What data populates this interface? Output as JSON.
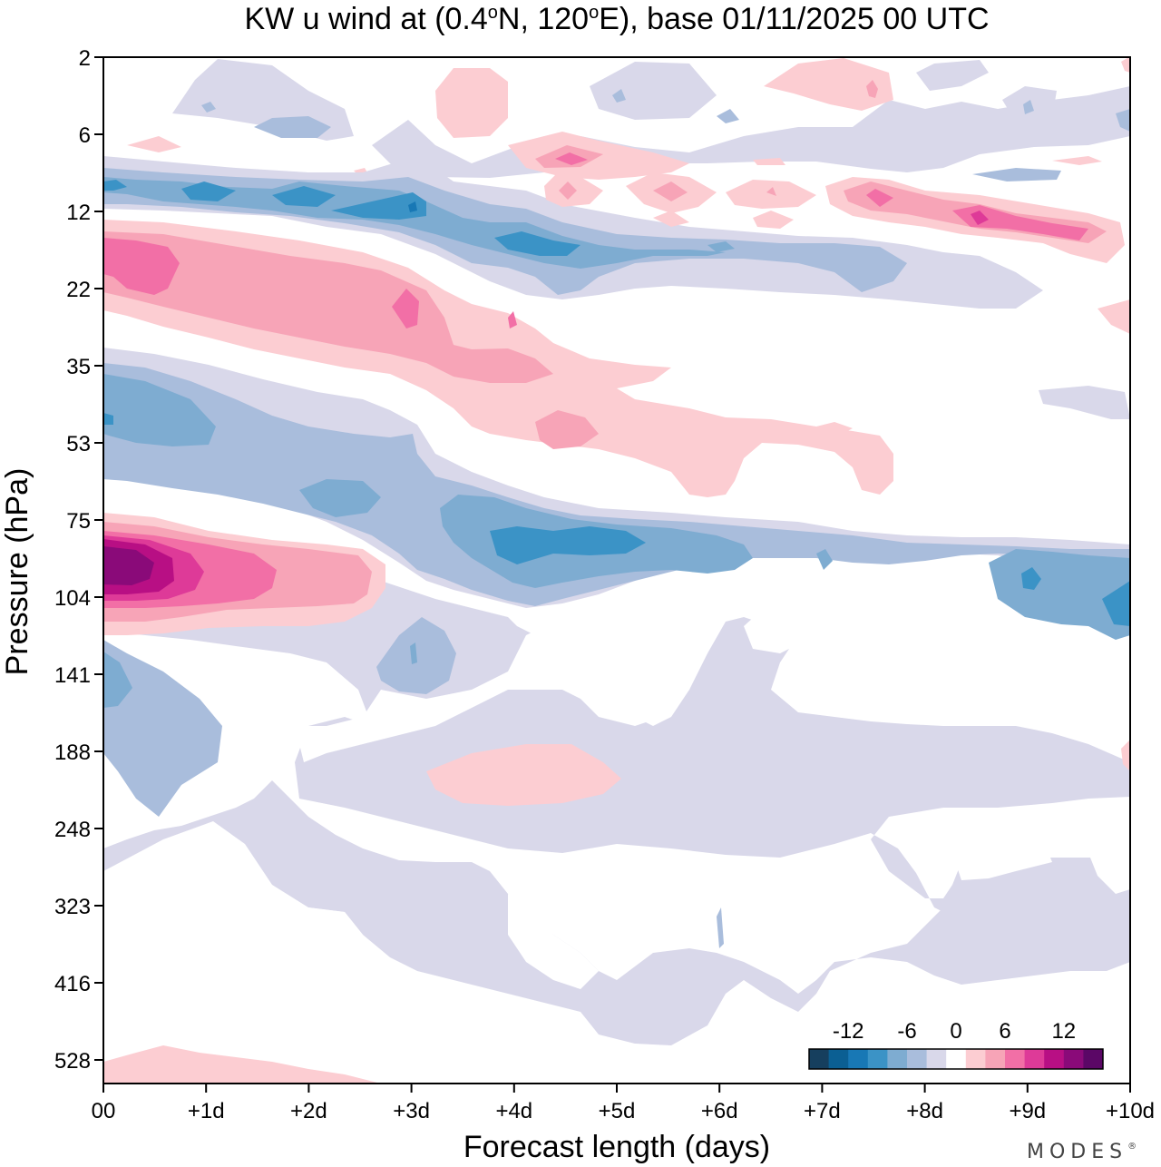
{
  "chart_data": {
    "type": "heatmap",
    "title_parts": {
      "a": "KW u wind at (0.4",
      "o1": "o",
      "b": "N, 120",
      "o2": "o",
      "c": "E),  base 01/11/2025  00 UTC"
    },
    "xlabel": "Forecast length (days)",
    "ylabel": "Pressure (hPa)",
    "x_ticks": [
      "00",
      "+1d",
      "+2d",
      "+3d",
      "+4d",
      "+5d",
      "+6d",
      "+7d",
      "+8d",
      "+9d",
      "+10d"
    ],
    "xlim": [
      0,
      10
    ],
    "y_ticks": [
      "2",
      "6",
      "12",
      "22",
      "35",
      "53",
      "75",
      "104",
      "141",
      "188",
      "248",
      "323",
      "416",
      "528"
    ],
    "y_scale": "log",
    "ylim": [
      528,
      2
    ],
    "colorbar": {
      "levels": [
        -14,
        -12,
        -10,
        -8,
        -6,
        -4,
        -2,
        2,
        4,
        6,
        8,
        10,
        12,
        14
      ],
      "labels": [
        "-12",
        "-6",
        "0",
        "6",
        "12"
      ],
      "colors": [
        "#163f5e",
        "#0b5f93",
        "#1878b5",
        "#3b93c6",
        "#7eacd1",
        "#a9bddc",
        "#d9d8ea",
        "#ffffff",
        "#fccdd2",
        "#f7a4b7",
        "#f26fa6",
        "#de3a98",
        "#b80f84",
        "#8a0a79",
        "#5b0766"
      ]
    },
    "features": [
      {
        "name": "u+14 max near 90 hPa",
        "sign": "positive",
        "level": 14,
        "x": [
          0.0,
          0.4
        ],
        "p": [
          88,
          100
        ]
      },
      {
        "name": "u+8 jet near 90 hPa",
        "sign": "positive",
        "level": 8,
        "x": [
          0.0,
          2.5
        ],
        "p": [
          80,
          115
        ]
      },
      {
        "name": "u+6 core near 16 hPa",
        "sign": "positive",
        "level": 6,
        "x": [
          0.0,
          3.0
        ],
        "p": [
          14,
          25
        ]
      },
      {
        "name": "u-8 band near 80 hPa",
        "sign": "negative",
        "level": -8,
        "x": [
          3.0,
          6.5
        ],
        "p": [
          72,
          98
        ]
      },
      {
        "name": "u-8 band near 12 hPa",
        "sign": "negative",
        "level": -8,
        "x": [
          1.5,
          4.5
        ],
        "p": [
          10,
          16
        ]
      },
      {
        "name": "u+8 core near 12 hPa",
        "sign": "positive",
        "level": 8,
        "x": [
          8.0,
          9.5
        ],
        "p": [
          11,
          15
        ]
      },
      {
        "name": "u-6 near 110 hPa",
        "sign": "negative",
        "level": -6,
        "x": [
          8.5,
          10.0
        ],
        "p": [
          95,
          125
        ]
      }
    ]
  },
  "branding": "MODES",
  "trademark": "®"
}
